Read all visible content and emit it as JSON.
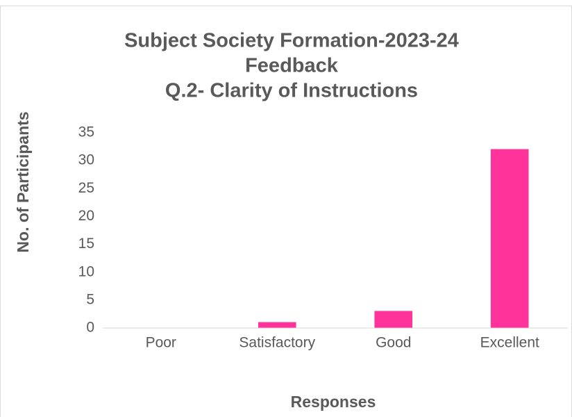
{
  "chart_data": {
    "type": "bar",
    "title": [
      "Subject Society Formation-2023-24",
      "Feedback",
      "Q.2- Clarity of Instructions"
    ],
    "x_label": "Responses",
    "y_label": "No. of Participants",
    "categories": [
      "Poor",
      "Satisfactory",
      "Good",
      "Excellent"
    ],
    "values": [
      0,
      1,
      3,
      32
    ],
    "color": "#ff3399",
    "ylim": [
      0,
      35
    ],
    "yticks": [
      0,
      5,
      10,
      15,
      20,
      25,
      30,
      35
    ],
    "grid": false
  }
}
